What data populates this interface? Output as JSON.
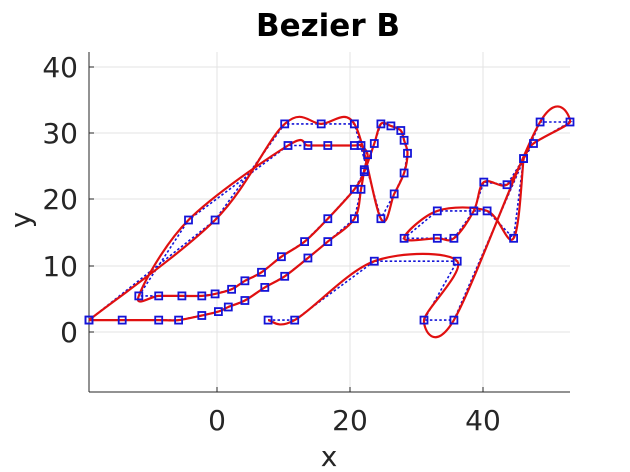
{
  "chart_data": {
    "type": "line",
    "title": "Bezier B",
    "xlabel": "x",
    "ylabel": "y",
    "xlim": [
      -19.5,
      53
    ],
    "ylim": [
      -9.5,
      42.5
    ],
    "xticks": [
      0,
      20,
      40
    ],
    "yticks": [
      0,
      10,
      20,
      30,
      40
    ],
    "grid": true,
    "colors": {
      "curve": "#e01010",
      "control_polygon": "#1414d8"
    },
    "series": [
      {
        "role": "control-points-outer",
        "points": [
          [
            -19.5,
            1.5
          ],
          [
            -14.5,
            1.5
          ],
          [
            -9,
            1.5
          ],
          [
            -6,
            1.5
          ],
          [
            -2.5,
            2.2
          ],
          [
            0,
            2.8
          ],
          [
            1.5,
            3.5
          ],
          [
            4,
            4.5
          ],
          [
            7,
            6.5
          ],
          [
            10,
            8.2
          ],
          [
            13.5,
            11
          ],
          [
            16.5,
            13.5
          ],
          [
            20.5,
            17
          ],
          [
            21.5,
            21.5
          ],
          [
            22,
            24.5
          ],
          [
            22.5,
            26.8
          ],
          [
            21.5,
            28.2
          ],
          [
            20.5,
            28.2
          ],
          [
            16.5,
            28.2
          ],
          [
            13.5,
            28.2
          ],
          [
            10.5,
            28.2
          ],
          [
            -4.5,
            16.8
          ],
          [
            -12,
            5.2
          ],
          [
            -9,
            5.2
          ],
          [
            -5.5,
            5.2
          ],
          [
            -2.5,
            5.2
          ],
          [
            -0.5,
            5.5
          ],
          [
            2,
            6.2
          ],
          [
            4,
            7.5
          ],
          [
            6.5,
            8.8
          ],
          [
            9.5,
            11.2
          ],
          [
            13,
            13.5
          ],
          [
            16.5,
            17
          ],
          [
            20.5,
            21.5
          ],
          [
            22,
            24.2
          ],
          [
            23.5,
            28.5
          ],
          [
            24.5,
            31.5
          ],
          [
            26,
            31.2
          ],
          [
            27.5,
            30.5
          ],
          [
            28,
            29
          ],
          [
            28.5,
            27
          ],
          [
            28,
            24
          ],
          [
            26.5,
            20.8
          ],
          [
            24.5,
            17
          ],
          [
            20.5,
            31.5
          ],
          [
            15.5,
            31.5
          ],
          [
            10,
            31.5
          ],
          [
            -0.5,
            16.8
          ],
          [
            -19.5,
            1.5
          ]
        ]
      },
      {
        "role": "control-points-A",
        "points": [
          [
            7.5,
            1.5
          ],
          [
            11.5,
            1.5
          ],
          [
            23.5,
            10.5
          ],
          [
            36,
            10.5
          ],
          [
            31,
            1.5
          ],
          [
            35.5,
            1.5
          ],
          [
            48.5,
            31.8
          ],
          [
            53,
            31.8
          ],
          [
            47.5,
            28.5
          ],
          [
            46,
            26.2
          ],
          [
            43.5,
            22.2
          ],
          [
            40,
            22.6
          ],
          [
            38.5,
            18.2
          ],
          [
            35.5,
            14
          ],
          [
            33,
            14
          ],
          [
            28,
            14
          ],
          [
            33,
            18.2
          ],
          [
            40.5,
            18.2
          ],
          [
            44.5,
            14
          ],
          [
            46,
            26.2
          ]
        ]
      }
    ]
  }
}
